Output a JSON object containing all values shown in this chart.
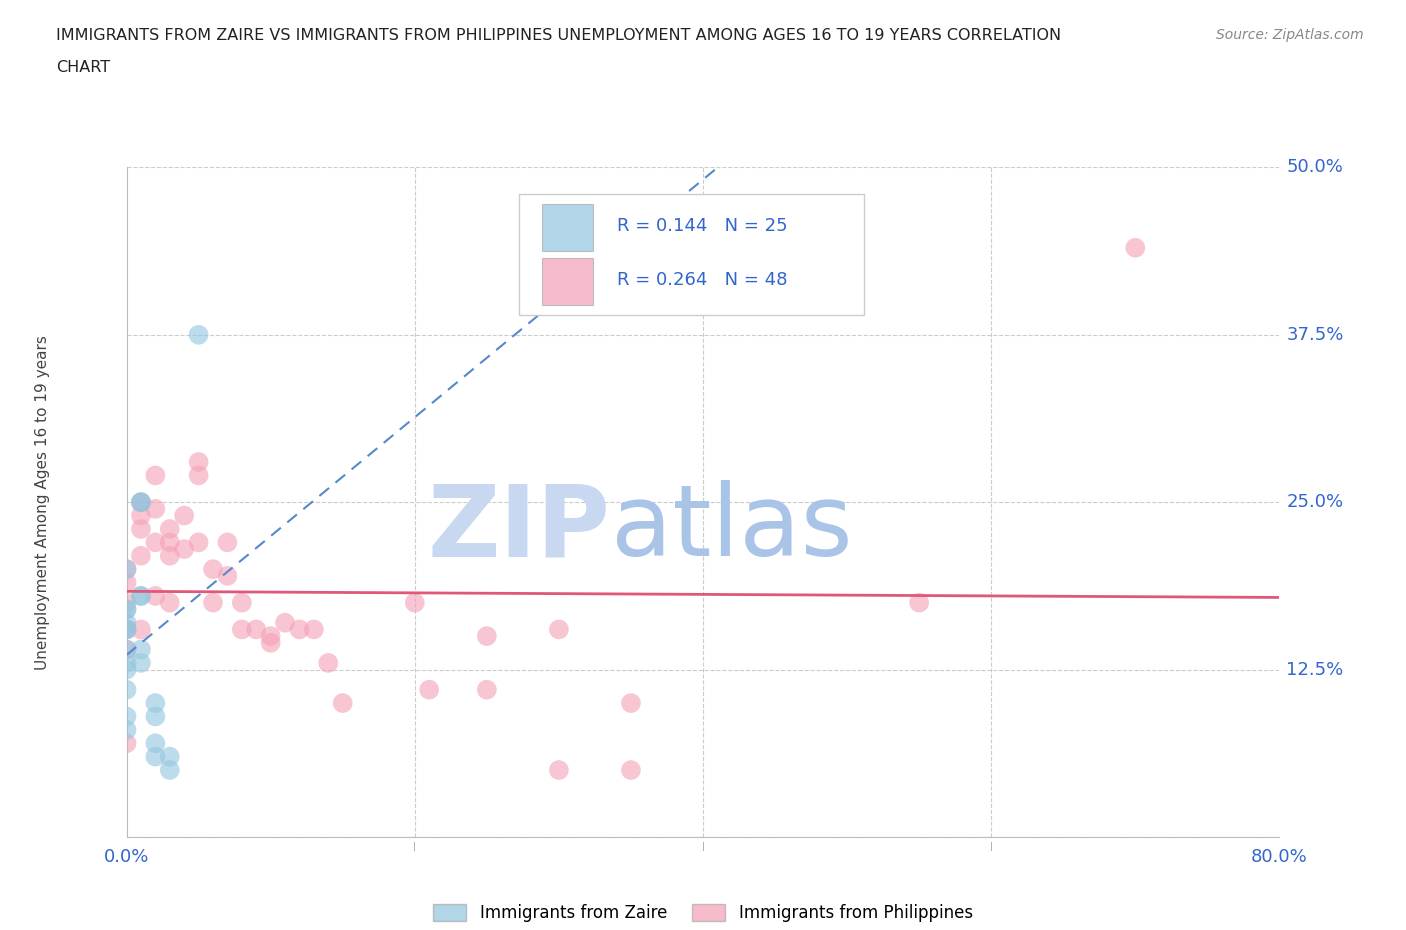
{
  "title_line1": "IMMIGRANTS FROM ZAIRE VS IMMIGRANTS FROM PHILIPPINES UNEMPLOYMENT AMONG AGES 16 TO 19 YEARS CORRELATION",
  "title_line2": "CHART",
  "source": "Source: ZipAtlas.com",
  "ylabel": "Unemployment Among Ages 16 to 19 years",
  "xlim": [
    0.0,
    0.8
  ],
  "ylim": [
    0.0,
    0.5
  ],
  "yticks": [
    0.0,
    0.125,
    0.25,
    0.375,
    0.5
  ],
  "yticklabels": [
    "",
    "12.5%",
    "25.0%",
    "37.5%",
    "50.0%"
  ],
  "xtick_left_label": "0.0%",
  "xtick_right_label": "80.0%",
  "zaire_color": "#92c5de",
  "philippines_color": "#f4a0b5",
  "zaire_line_color": "#5588cc",
  "philippines_line_color": "#e05878",
  "zaire_R": 0.144,
  "zaire_N": 25,
  "philippines_R": 0.264,
  "philippines_N": 48,
  "text_blue": "#3366cc",
  "watermark_zip_color": "#c8d8f0",
  "watermark_atlas_color": "#aac4e8",
  "grid_color": "#cccccc",
  "background_color": "#ffffff",
  "zaire_x": [
    0.0,
    0.0,
    0.0,
    0.0,
    0.0,
    0.0,
    0.0,
    0.0,
    0.0,
    0.0,
    0.0,
    0.0,
    0.01,
    0.01,
    0.01,
    0.01,
    0.01,
    0.01,
    0.02,
    0.02,
    0.02,
    0.02,
    0.03,
    0.03,
    0.05
  ],
  "zaire_y": [
    0.2,
    0.17,
    0.17,
    0.16,
    0.155,
    0.155,
    0.14,
    0.13,
    0.125,
    0.11,
    0.09,
    0.08,
    0.25,
    0.25,
    0.18,
    0.18,
    0.14,
    0.13,
    0.1,
    0.09,
    0.07,
    0.06,
    0.06,
    0.05,
    0.375
  ],
  "philippines_x": [
    0.0,
    0.0,
    0.0,
    0.0,
    0.0,
    0.0,
    0.01,
    0.01,
    0.01,
    0.01,
    0.01,
    0.02,
    0.02,
    0.02,
    0.02,
    0.03,
    0.03,
    0.03,
    0.03,
    0.04,
    0.04,
    0.05,
    0.05,
    0.05,
    0.06,
    0.06,
    0.07,
    0.07,
    0.08,
    0.08,
    0.09,
    0.1,
    0.1,
    0.11,
    0.12,
    0.13,
    0.14,
    0.15,
    0.2,
    0.21,
    0.25,
    0.25,
    0.3,
    0.3,
    0.35,
    0.35,
    0.55,
    0.7
  ],
  "philippines_y": [
    0.2,
    0.19,
    0.175,
    0.155,
    0.14,
    0.07,
    0.25,
    0.24,
    0.23,
    0.21,
    0.155,
    0.27,
    0.245,
    0.22,
    0.18,
    0.23,
    0.22,
    0.21,
    0.175,
    0.24,
    0.215,
    0.28,
    0.27,
    0.22,
    0.2,
    0.175,
    0.22,
    0.195,
    0.175,
    0.155,
    0.155,
    0.15,
    0.145,
    0.16,
    0.155,
    0.155,
    0.13,
    0.1,
    0.175,
    0.11,
    0.15,
    0.11,
    0.155,
    0.05,
    0.05,
    0.1,
    0.175,
    0.44
  ]
}
